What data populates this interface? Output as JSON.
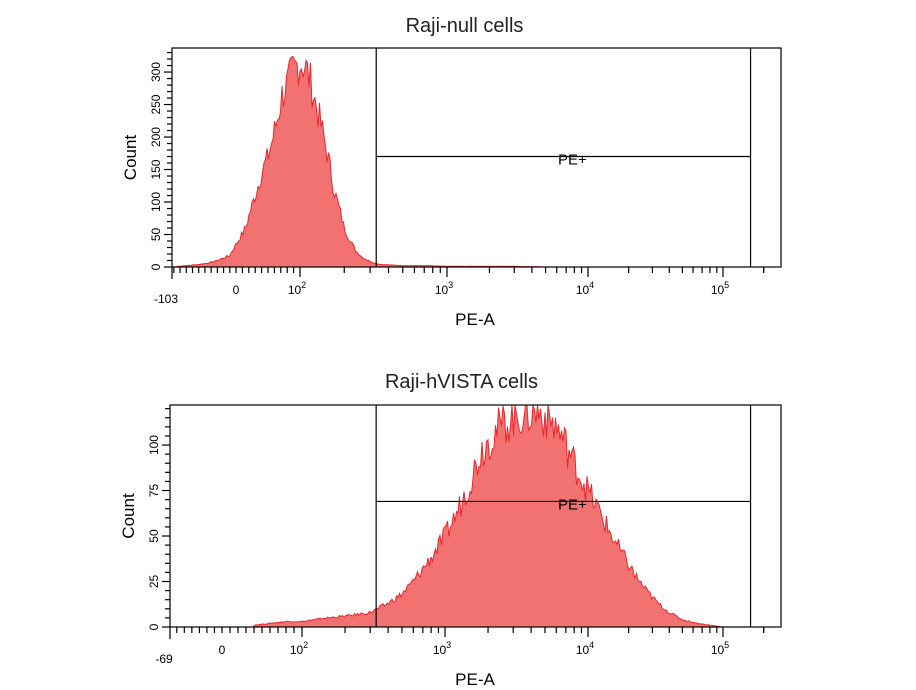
{
  "chart_data": [
    {
      "type": "area",
      "title": "Raji-null cells",
      "xlabel": "PE-A",
      "ylabel": "Count",
      "x_scale": "biexponential",
      "xlim": [
        -103,
        262144
      ],
      "x_ticks": [
        {
          "value": -103,
          "label": "-103"
        },
        {
          "value": 0,
          "label": "0"
        },
        {
          "value": 100,
          "base": "10",
          "exp": "2"
        },
        {
          "value": 1000,
          "base": "10",
          "exp": "3"
        },
        {
          "value": 10000,
          "base": "10",
          "exp": "4"
        },
        {
          "value": 100000,
          "base": "10",
          "exp": "5"
        }
      ],
      "ylim": [
        0,
        337
      ],
      "y_ticks": [
        0,
        50,
        100,
        150,
        200,
        250,
        300
      ],
      "fill_color": "#f27272",
      "line_color": "#e8262b",
      "gate": {
        "label": "PE+",
        "range": [
          330,
          160000
        ],
        "level": 170
      },
      "histogram": {
        "x": [
          -95,
          -80,
          -60,
          -45,
          -30,
          -20,
          -10,
          0,
          8,
          15,
          22,
          30,
          40,
          50,
          58,
          65,
          72,
          80,
          88,
          95,
          102,
          110,
          118,
          125,
          135,
          145,
          158,
          170,
          185,
          200,
          220,
          240,
          265,
          290,
          320,
          350,
          420,
          500,
          700,
          1000,
          1500,
          3000,
          5000,
          8000
        ],
        "y": [
          1,
          2,
          4,
          6,
          10,
          14,
          18,
          35,
          48,
          60,
          85,
          110,
          145,
          170,
          200,
          230,
          265,
          280,
          300,
          310,
          315,
          305,
          285,
          260,
          230,
          200,
          160,
          120,
          90,
          60,
          40,
          25,
          15,
          10,
          6,
          4,
          3,
          2,
          2,
          1,
          1,
          1,
          0,
          0
        ]
      }
    },
    {
      "type": "area",
      "title": "Raji-hVISTA cells",
      "xlabel": "PE-A",
      "ylabel": "Count",
      "x_scale": "biexponential",
      "xlim": [
        -69,
        262144
      ],
      "x_ticks": [
        {
          "value": -69,
          "label": "-69"
        },
        {
          "value": 0,
          "label": "0"
        },
        {
          "value": 100,
          "base": "10",
          "exp": "2"
        },
        {
          "value": 1000,
          "base": "10",
          "exp": "3"
        },
        {
          "value": 10000,
          "base": "10",
          "exp": "4"
        },
        {
          "value": 100000,
          "base": "10",
          "exp": "5"
        }
      ],
      "ylim": [
        0,
        122
      ],
      "y_ticks": [
        0,
        25,
        50,
        75,
        100
      ],
      "fill_color": "#f27272",
      "line_color": "#e8262b",
      "gate": {
        "label": "PE+",
        "range": [
          330,
          160000
        ],
        "level": 69
      },
      "histogram": {
        "x": [
          40,
          60,
          80,
          100,
          150,
          200,
          250,
          300,
          400,
          500,
          600,
          800,
          1000,
          1200,
          1500,
          1800,
          2200,
          2600,
          3000,
          3500,
          4000,
          4500,
          5000,
          6000,
          7000,
          8000,
          10000,
          12000,
          15000,
          18000,
          22000,
          27000,
          33000,
          40000,
          50000,
          65000,
          80000,
          100000
        ],
        "y": [
          1,
          2,
          3,
          3,
          5,
          6,
          7,
          8,
          13,
          18,
          25,
          38,
          50,
          62,
          80,
          97,
          107,
          112,
          115,
          117,
          118,
          118,
          116,
          110,
          100,
          90,
          75,
          64,
          50,
          40,
          29,
          20,
          13,
          8,
          4,
          2,
          1,
          0
        ]
      }
    }
  ]
}
